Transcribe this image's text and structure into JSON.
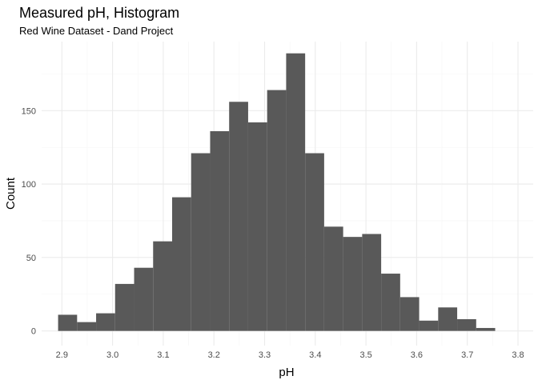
{
  "chart_data": {
    "type": "bar",
    "title": "Measured pH, Histogram",
    "subtitle": "Red Wine Dataset - Dand Project",
    "xlabel": "pH",
    "ylabel": "Count",
    "bin_width": 0.0375,
    "bins": [
      {
        "x0": 2.8925,
        "x1": 2.93,
        "count": 11
      },
      {
        "x0": 2.93,
        "x1": 2.9675,
        "count": 6
      },
      {
        "x0": 2.9675,
        "x1": 3.005,
        "count": 12
      },
      {
        "x0": 3.005,
        "x1": 3.0425,
        "count": 32
      },
      {
        "x0": 3.0425,
        "x1": 3.08,
        "count": 43
      },
      {
        "x0": 3.08,
        "x1": 3.1175,
        "count": 61
      },
      {
        "x0": 3.1175,
        "x1": 3.155,
        "count": 91
      },
      {
        "x0": 3.155,
        "x1": 3.1925,
        "count": 121
      },
      {
        "x0": 3.1925,
        "x1": 3.23,
        "count": 136
      },
      {
        "x0": 3.23,
        "x1": 3.2675,
        "count": 156
      },
      {
        "x0": 3.2675,
        "x1": 3.305,
        "count": 142
      },
      {
        "x0": 3.305,
        "x1": 3.3425,
        "count": 164
      },
      {
        "x0": 3.3425,
        "x1": 3.38,
        "count": 189
      },
      {
        "x0": 3.38,
        "x1": 3.4175,
        "count": 121
      },
      {
        "x0": 3.4175,
        "x1": 3.455,
        "count": 71
      },
      {
        "x0": 3.455,
        "x1": 3.4925,
        "count": 64
      },
      {
        "x0": 3.4925,
        "x1": 3.53,
        "count": 66
      },
      {
        "x0": 3.53,
        "x1": 3.5675,
        "count": 39
      },
      {
        "x0": 3.5675,
        "x1": 3.605,
        "count": 23
      },
      {
        "x0": 3.605,
        "x1": 3.6425,
        "count": 7
      },
      {
        "x0": 3.6425,
        "x1": 3.68,
        "count": 16
      },
      {
        "x0": 3.68,
        "x1": 3.7175,
        "count": 8
      },
      {
        "x0": 3.7175,
        "x1": 3.755,
        "count": 2
      }
    ],
    "xlim": [
      2.86,
      3.83
    ],
    "ylim": [
      -10,
      197
    ],
    "xticks": [
      2.9,
      3.0,
      3.1,
      3.2,
      3.3,
      3.4,
      3.5,
      3.6,
      3.7,
      3.8
    ],
    "xtick_labels": [
      "2.9",
      "3.0",
      "3.1",
      "3.2",
      "3.3",
      "3.4",
      "3.5",
      "3.6",
      "3.7",
      "3.8"
    ],
    "yticks": [
      0,
      50,
      100,
      150
    ],
    "ytick_labels": [
      "0",
      "50",
      "100",
      "150"
    ],
    "grid": true,
    "legend": "none",
    "colors": {
      "bar": "#595959",
      "grid_major": "#ebebeb",
      "grid_minor": "#f5f5f5",
      "tick_text": "#4d4d4d",
      "title_text": "#000000",
      "background": "#ffffff"
    }
  }
}
